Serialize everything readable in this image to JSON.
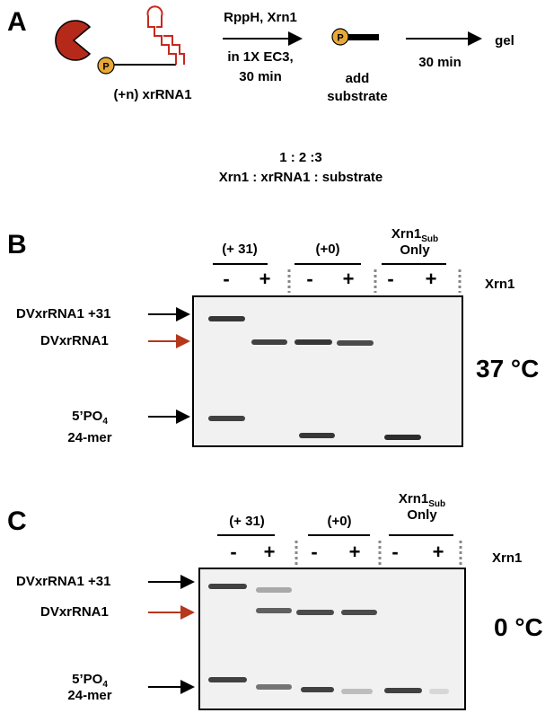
{
  "panel_a": {
    "label": "A",
    "step1": [
      "RppH, Xrn1",
      "in 1X EC3,",
      "30 min"
    ],
    "rna_label": "(+n) xrRNA1",
    "phosphate": [
      "P",
      "P"
    ],
    "substrate_label": [
      "add",
      "substrate"
    ],
    "step2": "30 min",
    "end": "gel",
    "ratio": "1 : 2 :3",
    "ratio_legend": "Xrn1 : xrRNA1 : substrate"
  },
  "gels": [
    {
      "label": "B",
      "groups": [
        {
          "name": "(+ 31)"
        },
        {
          "name": "(+0)"
        },
        {
          "name": "Xrn1",
          "sub": "Sub",
          "line2": "Only"
        }
      ],
      "lanes": [
        "-",
        "+",
        "-",
        "+",
        "-",
        "+"
      ],
      "lane_axis": "Xrn1",
      "bands": [
        {
          "name": "DVxrRNA1 +31"
        },
        {
          "name": "DVxrRNA1"
        },
        {
          "name": "5’PO",
          "sub": "4",
          "line2": "24-mer"
        }
      ],
      "temperature": "37 °C"
    },
    {
      "label": "C",
      "groups": [
        {
          "name": "(+ 31)"
        },
        {
          "name": "(+0)"
        },
        {
          "name": "Xrn1",
          "sub": "Sub",
          "line2": "Only"
        }
      ],
      "lanes": [
        "-",
        "+",
        "-",
        "+",
        "-",
        "+"
      ],
      "lane_axis": "Xrn1",
      "bands": [
        {
          "name": "DVxrRNA1 +31"
        },
        {
          "name": "DVxrRNA1"
        },
        {
          "name": "5’PO",
          "sub": "4",
          "line2": "24-mer"
        }
      ],
      "temperature": "0 °C"
    }
  ]
}
